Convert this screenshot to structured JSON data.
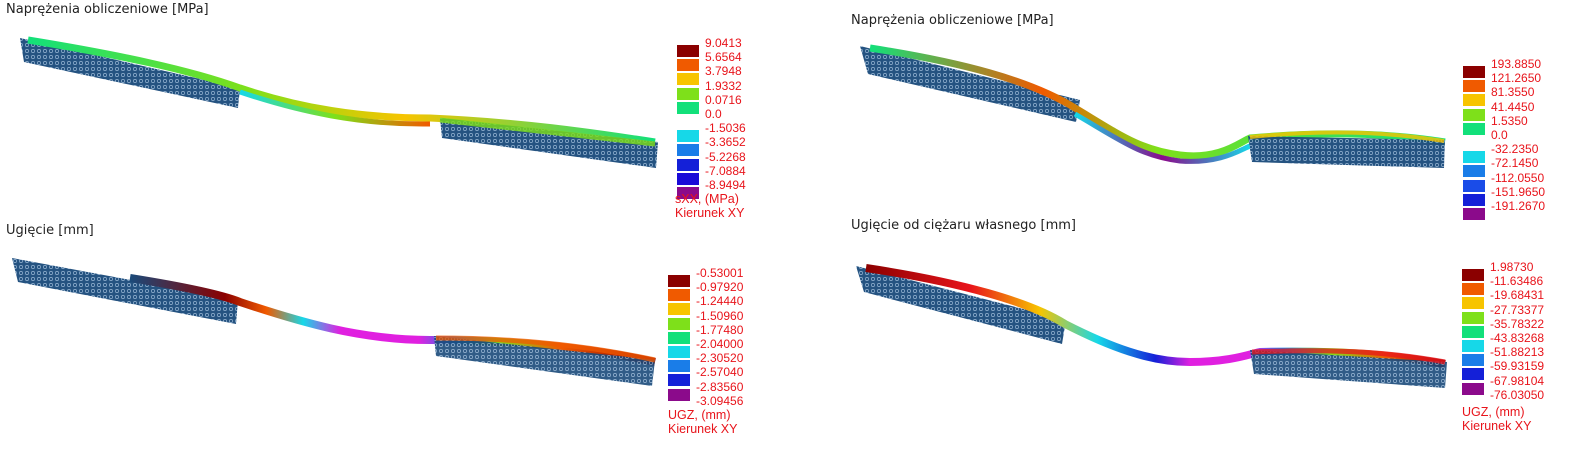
{
  "colors": {
    "legend_text": "#e8141b",
    "mesh": "#1a4a7a",
    "scale": [
      "#8b0000",
      "#f05a00",
      "#f7c400",
      "#7ee01a",
      "#12e07a",
      "#16d8e8",
      "#1a7de8",
      "#1420d8",
      "#8b0a8b"
    ]
  },
  "panels": [
    {
      "id": "sxx",
      "title": "Naprężenia obliczeniowe [MPa]",
      "legend_values": [
        "9.0413",
        "5.6564",
        "3.7948",
        "1.9332",
        "0.0716",
        "0.0",
        "-1.5036",
        "-3.3652",
        "-5.2268",
        "-7.0884",
        "-8.9494"
      ],
      "legend_swatches": [
        "#8b0000",
        "#f05a00",
        "#f7c400",
        "#7ee01a",
        "#12e07a",
        "none",
        "#16d8e8",
        "#1a7de8",
        "#1420d8",
        "#1a0ad8",
        "#8b0a8b"
      ],
      "legend_foot": [
        "sXX, (MPa)",
        "Kierunek XY"
      ]
    },
    {
      "id": "sxx2",
      "title": "Naprężenia obliczeniowe [MPa]",
      "legend_values": [
        "193.8850",
        "121.2650",
        "81.3550",
        "41.4450",
        "1.5350",
        "0.0",
        "-32.2350",
        "-72.1450",
        "-112.0550",
        "-151.9650",
        "-191.2670"
      ],
      "legend_swatches": [
        "#8b0000",
        "#f05a00",
        "#f7c400",
        "#7ee01a",
        "#12e07a",
        "none",
        "#16d8e8",
        "#1a7de8",
        "#1a4ce8",
        "#1420d8",
        "#8b0a8b"
      ],
      "legend_foot": []
    },
    {
      "id": "ugz",
      "title": "Ugięcie [mm]",
      "legend_values": [
        "-0.53001",
        "-0.97920",
        "-1.24440",
        "-1.50960",
        "-1.77480",
        "-2.04000",
        "-2.30520",
        "-2.57040",
        "-2.83560",
        "-3.09456"
      ],
      "legend_swatches": [
        "#8b0000",
        "#f05a00",
        "#f7c400",
        "#7ee01a",
        "#12e07a",
        "#16d8e8",
        "#1a7de8",
        "#1420d8",
        "#8b0a8b",
        "none"
      ],
      "legend_foot": [
        "UGZ, (mm)",
        "Kierunek XY"
      ]
    },
    {
      "id": "ugz2",
      "title": "Ugięcie od ciężaru własnego [mm]",
      "legend_values": [
        "1.98730",
        "-11.63486",
        "-19.68431",
        "-27.73377",
        "-35.78322",
        "-43.83268",
        "-51.88213",
        "-59.93159",
        "-67.98104",
        "-76.03050"
      ],
      "legend_swatches": [
        "#8b0000",
        "#f05a00",
        "#f7c400",
        "#7ee01a",
        "#12e07a",
        "#16d8e8",
        "#1a7de8",
        "#1420d8",
        "#8b0a8b",
        "none"
      ],
      "legend_foot": [
        "UGZ, (mm)",
        "Kierunek XY"
      ]
    }
  ]
}
